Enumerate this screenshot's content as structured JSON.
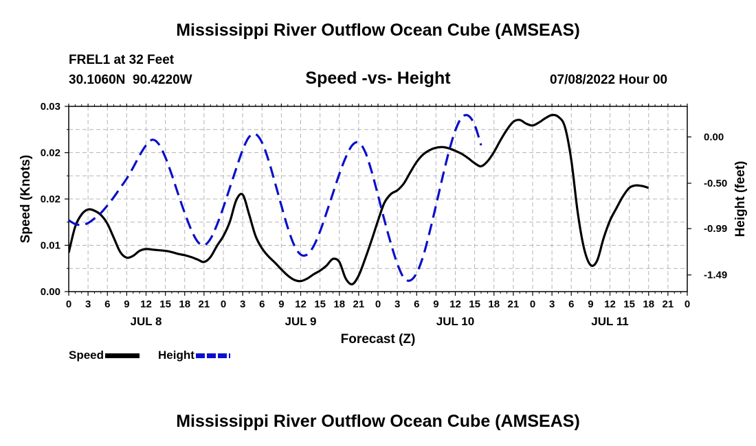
{
  "header": {
    "title": "Mississippi River Outflow Ocean Cube (AMSEAS)",
    "station": "FREL1 at 32 Feet",
    "coords": "30.1060N  90.4220W",
    "subtitle": "Speed -vs- Height",
    "datetime": "07/08/2022 Hour 00"
  },
  "footer": {
    "title": "Mississippi River Outflow Ocean Cube (AMSEAS)"
  },
  "colors": {
    "speed": "#000000",
    "height": "#0a10c8",
    "grid": "#b4b4b4"
  },
  "chart_data": {
    "type": "line",
    "title": "Speed -vs- Height",
    "xlabel": "Forecast (Z)",
    "ylabel": "Speed (Knots)",
    "y2label": "Height (feet)",
    "x_tick_labels": [
      "0",
      "3",
      "6",
      "9",
      "12",
      "15",
      "18",
      "21",
      "0",
      "3",
      "6",
      "9",
      "12",
      "15",
      "18",
      "21",
      "0",
      "3",
      "6",
      "9",
      "12",
      "15",
      "18",
      "21",
      "0",
      "3",
      "6",
      "9",
      "12",
      "15",
      "18",
      "21",
      "0"
    ],
    "day_labels": [
      {
        "label": "JUL 8",
        "hour": 12
      },
      {
        "label": "JUL 9",
        "hour": 36
      },
      {
        "label": "JUL 10",
        "hour": 60
      },
      {
        "label": "JUL 11",
        "hour": 84
      }
    ],
    "xlim": [
      0,
      96
    ],
    "ylim": [
      0,
      0.03
    ],
    "y_tick_labels": [
      "0.00",
      "0.01",
      "0.02",
      "0.02",
      "0.03"
    ],
    "y2lim": [
      -1.67,
      0.33
    ],
    "y2_ticks": [
      0.0,
      -0.5,
      -0.99,
      -1.49
    ],
    "y2_tick_labels": [
      "0.00",
      "-0.50",
      "-0.99",
      "-1.49"
    ],
    "series": [
      {
        "name": "Speed",
        "axis": "left",
        "style": "solid",
        "points": [
          [
            0,
            0.0063
          ],
          [
            1,
            0.0105
          ],
          [
            2,
            0.0125
          ],
          [
            3,
            0.0133
          ],
          [
            4,
            0.0131
          ],
          [
            5,
            0.0124
          ],
          [
            6,
            0.011
          ],
          [
            7,
            0.0087
          ],
          [
            8,
            0.0064
          ],
          [
            9,
            0.0055
          ],
          [
            10,
            0.0058
          ],
          [
            11,
            0.0066
          ],
          [
            12,
            0.0069
          ],
          [
            13,
            0.0068
          ],
          [
            14,
            0.0067
          ],
          [
            15,
            0.0066
          ],
          [
            16,
            0.0064
          ],
          [
            17,
            0.0061
          ],
          [
            18,
            0.0059
          ],
          [
            19,
            0.0056
          ],
          [
            20,
            0.0052
          ],
          [
            21,
            0.0048
          ],
          [
            22,
            0.0056
          ],
          [
            23,
            0.0074
          ],
          [
            24,
            0.009
          ],
          [
            25,
            0.0113
          ],
          [
            26,
            0.0148
          ],
          [
            27,
            0.0157
          ],
          [
            28,
            0.0125
          ],
          [
            29,
            0.009
          ],
          [
            30,
            0.007
          ],
          [
            31,
            0.0057
          ],
          [
            32,
            0.0047
          ],
          [
            33,
            0.0036
          ],
          [
            34,
            0.0026
          ],
          [
            35,
            0.0019
          ],
          [
            36,
            0.0017
          ],
          [
            37,
            0.0021
          ],
          [
            38,
            0.0028
          ],
          [
            39,
            0.0034
          ],
          [
            40,
            0.0042
          ],
          [
            41,
            0.0053
          ],
          [
            42,
            0.0048
          ],
          [
            43,
            0.0021
          ],
          [
            44,
            0.0012
          ],
          [
            45,
            0.0026
          ],
          [
            46,
            0.0053
          ],
          [
            47,
            0.0083
          ],
          [
            48,
            0.0115
          ],
          [
            49,
            0.0144
          ],
          [
            50,
            0.0158
          ],
          [
            51,
            0.0164
          ],
          [
            52,
            0.0175
          ],
          [
            53,
            0.0193
          ],
          [
            54,
            0.021
          ],
          [
            55,
            0.0222
          ],
          [
            56,
            0.0229
          ],
          [
            57,
            0.0233
          ],
          [
            58,
            0.0234
          ],
          [
            59,
            0.0232
          ],
          [
            60,
            0.0228
          ],
          [
            61,
            0.0223
          ],
          [
            62,
            0.0216
          ],
          [
            63,
            0.0208
          ],
          [
            64,
            0.0203
          ],
          [
            65,
            0.0211
          ],
          [
            66,
            0.0226
          ],
          [
            67,
            0.0245
          ],
          [
            68,
            0.0262
          ],
          [
            69,
            0.0275
          ],
          [
            70,
            0.0278
          ],
          [
            71,
            0.0272
          ],
          [
            72,
            0.0269
          ],
          [
            73,
            0.0274
          ],
          [
            74,
            0.0281
          ],
          [
            75,
            0.0286
          ],
          [
            76,
            0.0283
          ],
          [
            77,
            0.0267
          ],
          [
            78,
            0.0213
          ],
          [
            79,
            0.0128
          ],
          [
            80,
            0.0069
          ],
          [
            81,
            0.0043
          ],
          [
            82,
            0.005
          ],
          [
            83,
            0.0086
          ],
          [
            84,
            0.0115
          ],
          [
            85,
            0.0135
          ],
          [
            86,
            0.0154
          ],
          [
            87,
            0.0168
          ],
          [
            88,
            0.0172
          ],
          [
            89,
            0.0171
          ],
          [
            90,
            0.0168
          ]
        ]
      },
      {
        "name": "Height",
        "axis": "right",
        "style": "dashed",
        "points": [
          [
            0,
            -0.9
          ],
          [
            1,
            -0.94
          ],
          [
            2,
            -0.95
          ],
          [
            3,
            -0.93
          ],
          [
            4,
            -0.88
          ],
          [
            5,
            -0.82
          ],
          [
            6,
            -0.74
          ],
          [
            7,
            -0.65
          ],
          [
            8,
            -0.55
          ],
          [
            9,
            -0.45
          ],
          [
            10,
            -0.33
          ],
          [
            11,
            -0.2
          ],
          [
            12,
            -0.09
          ],
          [
            13,
            -0.03
          ],
          [
            14,
            -0.08
          ],
          [
            15,
            -0.22
          ],
          [
            16,
            -0.41
          ],
          [
            17,
            -0.62
          ],
          [
            18,
            -0.82
          ],
          [
            19,
            -1.0
          ],
          [
            20,
            -1.13
          ],
          [
            21,
            -1.17
          ],
          [
            22,
            -1.1
          ],
          [
            23,
            -0.95
          ],
          [
            24,
            -0.76
          ],
          [
            25,
            -0.55
          ],
          [
            26,
            -0.34
          ],
          [
            27,
            -0.14
          ],
          [
            28,
            0.0
          ],
          [
            29,
            0.03
          ],
          [
            30,
            -0.06
          ],
          [
            31,
            -0.25
          ],
          [
            32,
            -0.49
          ],
          [
            33,
            -0.74
          ],
          [
            34,
            -0.98
          ],
          [
            35,
            -1.17
          ],
          [
            36,
            -1.27
          ],
          [
            37,
            -1.27
          ],
          [
            38,
            -1.18
          ],
          [
            39,
            -1.02
          ],
          [
            40,
            -0.82
          ],
          [
            41,
            -0.61
          ],
          [
            42,
            -0.4
          ],
          [
            43,
            -0.22
          ],
          [
            44,
            -0.09
          ],
          [
            45,
            -0.06
          ],
          [
            46,
            -0.16
          ],
          [
            47,
            -0.37
          ],
          [
            48,
            -0.63
          ],
          [
            49,
            -0.9
          ],
          [
            50,
            -1.15
          ],
          [
            51,
            -1.37
          ],
          [
            52,
            -1.52
          ],
          [
            53,
            -1.55
          ],
          [
            54,
            -1.47
          ],
          [
            55,
            -1.29
          ],
          [
            56,
            -1.03
          ],
          [
            57,
            -0.74
          ],
          [
            58,
            -0.44
          ],
          [
            59,
            -0.16
          ],
          [
            60,
            0.07
          ],
          [
            61,
            0.21
          ],
          [
            62,
            0.23
          ],
          [
            63,
            0.13
          ],
          [
            64,
            -0.09
          ]
        ]
      }
    ]
  }
}
